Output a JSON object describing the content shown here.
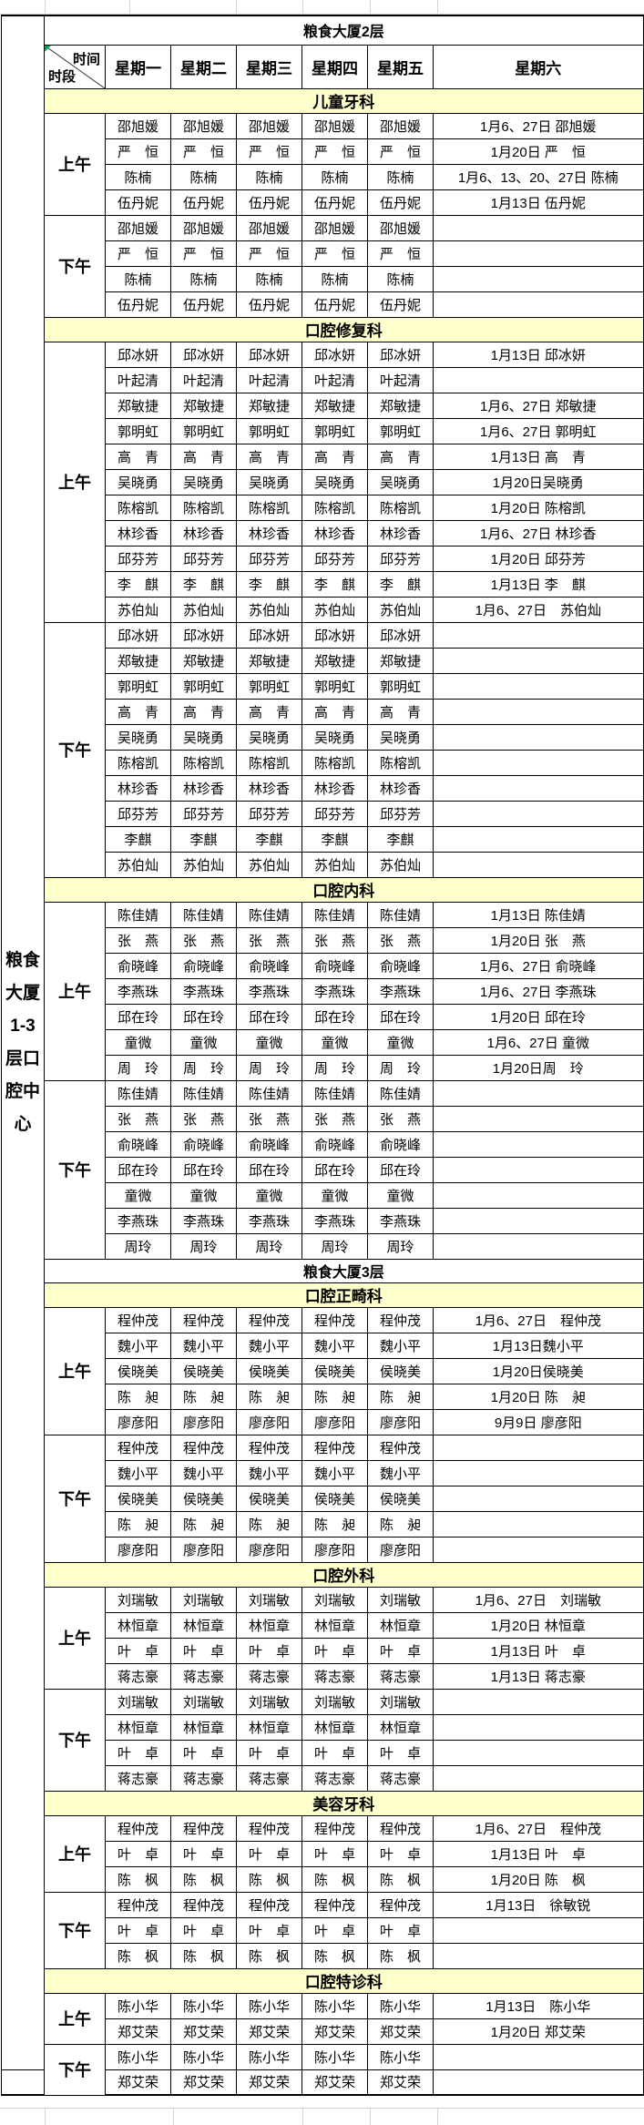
{
  "building": {
    "floor2_label": "粮食大厦2层",
    "left_label": "粮食大厦1-3层口腔中心"
  },
  "table": {
    "corner_top": "时间",
    "corner_bottom": "时段",
    "day_headers": [
      "星期一",
      "星期二",
      "星期三",
      "星期四",
      "星期五",
      "星期六"
    ],
    "am_label": "上午",
    "pm_label": "下午"
  },
  "sections": [
    {
      "title": "儿童牙科",
      "am": [
        {
          "doctor": "邵旭媛",
          "sat": "1月6、27日 邵旭媛"
        },
        {
          "doctor": "严　恒",
          "sat": "1月20日 严　恒"
        },
        {
          "doctor": "陈楠",
          "sat": "1月6、13、20、27日 陈楠"
        },
        {
          "doctor": "伍丹妮",
          "sat": "1月13日 伍丹妮"
        }
      ],
      "pm": [
        {
          "doctor": "邵旭媛",
          "sat": ""
        },
        {
          "doctor": "严　恒",
          "sat": ""
        },
        {
          "doctor": "陈楠",
          "sat": ""
        },
        {
          "doctor": "伍丹妮",
          "sat": ""
        }
      ]
    },
    {
      "title": "口腔修复科",
      "am": [
        {
          "doctor": "邱冰妍",
          "sat": "1月13日 邱冰妍"
        },
        {
          "doctor": "叶起清",
          "sat": ""
        },
        {
          "doctor": "郑敏捷",
          "sat": "1月6、27日 郑敏捷"
        },
        {
          "doctor": "郭明虹",
          "sat": "1月6、27日 郭明虹"
        },
        {
          "doctor": "高　青",
          "sat": "1月13日 高　青"
        },
        {
          "doctor": "吴晓勇",
          "sat": "1月20日吴晓勇"
        },
        {
          "doctor": "陈榕凯",
          "sat": "1月20日 陈榕凯"
        },
        {
          "doctor": "林珍香",
          "sat": "1月6、27日 林珍香"
        },
        {
          "doctor": "邱芬芳",
          "sat": "1月20日 邱芬芳"
        },
        {
          "doctor": "李　麒",
          "sat": "1月13日 李　麒"
        },
        {
          "doctor": "苏伯灿",
          "sat": "1月6、27日　苏伯灿"
        }
      ],
      "pm": [
        {
          "doctor": "邱冰妍",
          "sat": ""
        },
        {
          "doctor": "郑敏捷",
          "sat": ""
        },
        {
          "doctor": "郭明虹",
          "sat": ""
        },
        {
          "doctor": "高　青",
          "sat": ""
        },
        {
          "doctor": "吴晓勇",
          "sat": ""
        },
        {
          "doctor": "陈榕凯",
          "sat": ""
        },
        {
          "doctor": "林珍香",
          "sat": ""
        },
        {
          "doctor": "邱芬芳",
          "sat": ""
        },
        {
          "doctor": "李麒",
          "sat": ""
        },
        {
          "doctor": "苏伯灿",
          "sat": ""
        }
      ]
    },
    {
      "title": "口腔内科",
      "am": [
        {
          "doctor": "陈佳婧",
          "sat": "1月13日 陈佳婧"
        },
        {
          "doctor": "张　燕",
          "sat": "1月20日 张　燕"
        },
        {
          "doctor": "俞晓峰",
          "sat": "1月6、27日 俞晓峰"
        },
        {
          "doctor": "李燕珠",
          "sat": "1月6、27日 李燕珠"
        },
        {
          "doctor": "邱在玲",
          "sat": "1月20日 邱在玲"
        },
        {
          "doctor": "童微",
          "sat": "1月6、27日 童微"
        },
        {
          "doctor": "周　玲",
          "sat": "1月20日周　玲"
        }
      ],
      "pm": [
        {
          "doctor": "陈佳婧",
          "sat": ""
        },
        {
          "doctor": "张　燕",
          "sat": ""
        },
        {
          "doctor": "俞晓峰",
          "sat": ""
        },
        {
          "doctor": "邱在玲",
          "sat": ""
        },
        {
          "doctor": "童微",
          "sat": ""
        },
        {
          "doctor": "李燕珠",
          "sat": ""
        },
        {
          "doctor": "周玲",
          "sat": ""
        }
      ]
    },
    {
      "pre_floor": "粮食大厦3层",
      "title": "口腔正畸科",
      "am": [
        {
          "doctor": "程仲茂",
          "sat": "1月6、27日　程仲茂"
        },
        {
          "doctor": "魏小平",
          "sat": "1月13日魏小平"
        },
        {
          "doctor": "侯晓美",
          "sat": "1月20日侯晓美"
        },
        {
          "doctor": "陈　昶",
          "sat": "1月20日 陈　昶"
        },
        {
          "doctor": "廖彦阳",
          "sat": "9月9日 廖彦阳"
        }
      ],
      "pm": [
        {
          "doctor": "程仲茂",
          "sat": ""
        },
        {
          "doctor": "魏小平",
          "sat": ""
        },
        {
          "doctor": "侯晓美",
          "sat": ""
        },
        {
          "doctor": "陈　昶",
          "sat": ""
        },
        {
          "doctor": "廖彦阳",
          "sat": ""
        }
      ]
    },
    {
      "title": "口腔外科",
      "am": [
        {
          "doctor": "刘瑞敏",
          "sat": "1月6、27日　刘瑞敏"
        },
        {
          "doctor": "林恒章",
          "sat": "1月20日 林恒章"
        },
        {
          "doctor": "叶　卓",
          "sat": "1月13日 叶　卓"
        },
        {
          "doctor": "蒋志豪",
          "sat": "1月13日 蒋志豪"
        }
      ],
      "pm": [
        {
          "doctor": "刘瑞敏",
          "sat": ""
        },
        {
          "doctor": "林恒章",
          "sat": ""
        },
        {
          "doctor": "叶　卓",
          "sat": ""
        },
        {
          "doctor": "蒋志豪",
          "sat": ""
        }
      ]
    },
    {
      "title": "美容牙科",
      "am": [
        {
          "doctor": "程仲茂",
          "sat": "1月6、27日　程仲茂"
        },
        {
          "doctor": "叶　卓",
          "sat": "1月13日 叶　卓"
        },
        {
          "doctor": "陈　枫",
          "sat": "1月20日 陈　枫"
        }
      ],
      "pm": [
        {
          "doctor": "程仲茂",
          "sat": "1月13日　徐敏锐"
        },
        {
          "doctor": "叶　卓",
          "sat": ""
        },
        {
          "doctor": "陈　枫",
          "sat": ""
        }
      ]
    },
    {
      "title": "口腔特诊科",
      "am": [
        {
          "doctor": "陈小华",
          "sat": "1月13日　陈小华"
        },
        {
          "doctor": "郑艾荣",
          "sat": "1月20日 郑艾荣"
        }
      ],
      "pm": [
        {
          "doctor": "陈小华",
          "sat": ""
        },
        {
          "doctor": "郑艾荣",
          "sat": ""
        }
      ]
    }
  ]
}
